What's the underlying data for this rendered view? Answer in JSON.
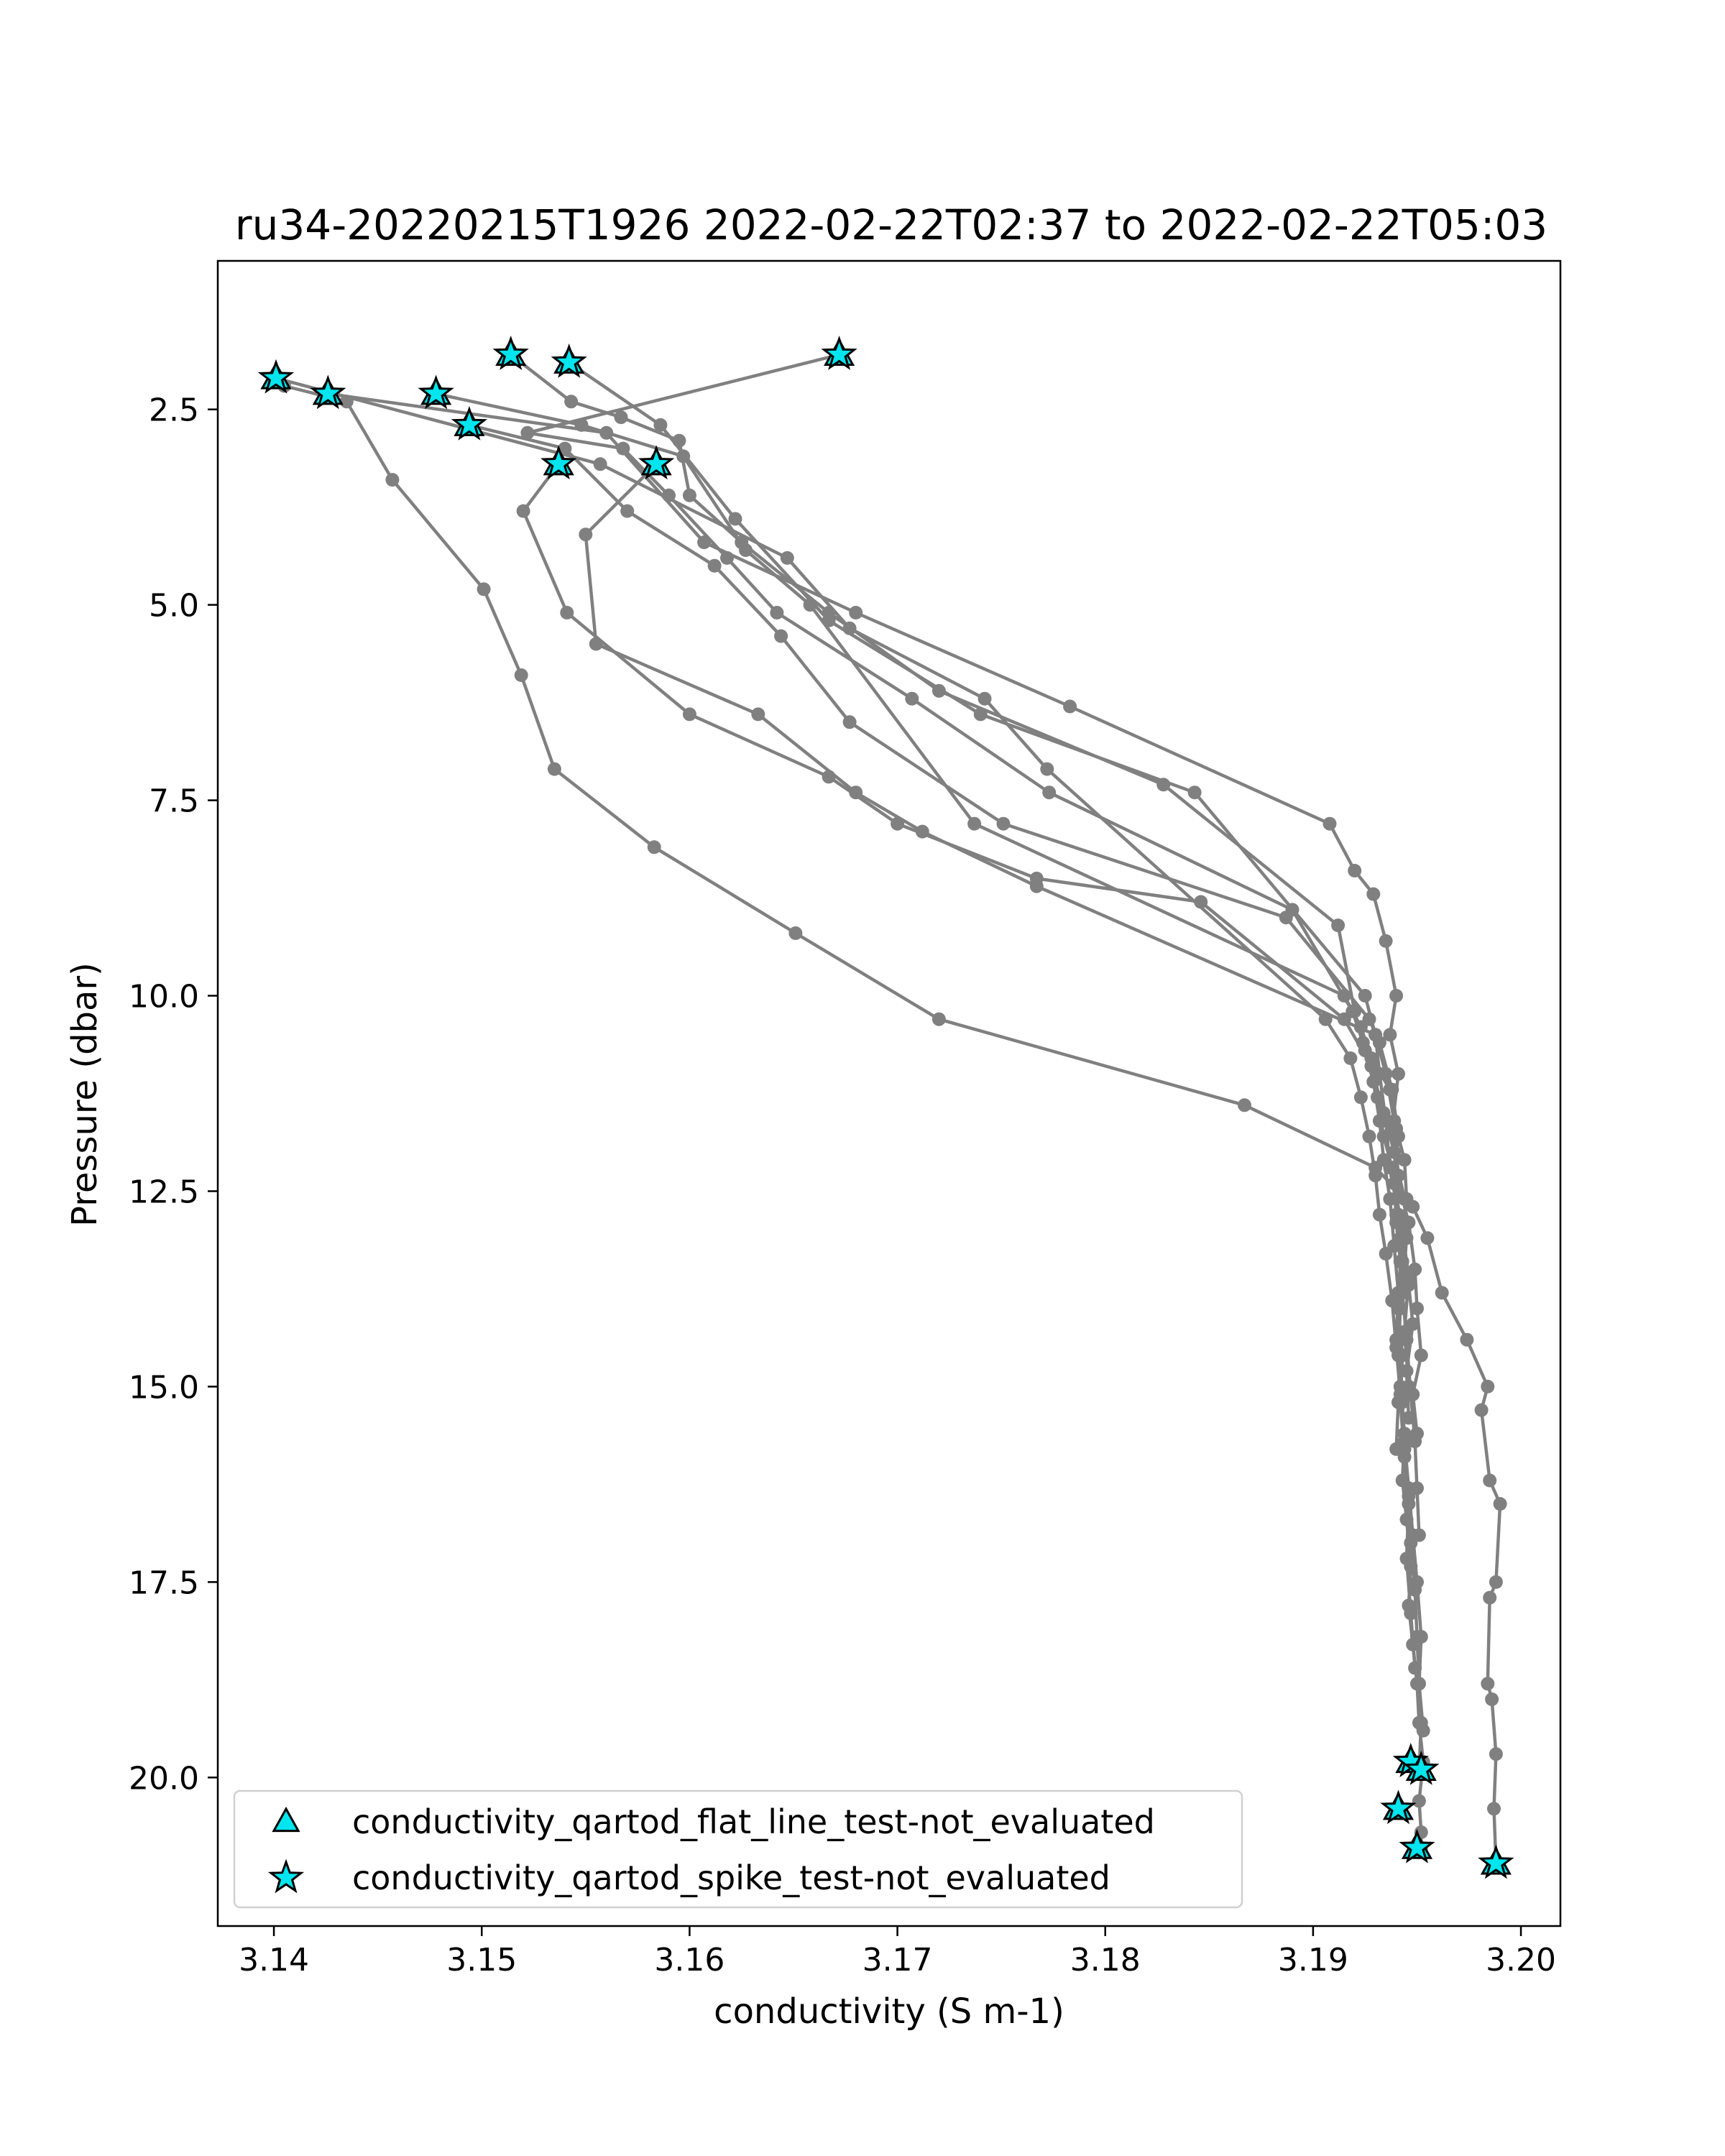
{
  "chart_data": {
    "type": "line",
    "title": "ru34-20220215T1926 2022-02-22T02:37 to 2022-02-22T05:03",
    "xlabel": "conductivity (S m-1)",
    "ylabel": "Pressure (dbar)",
    "xlim": [
      3.1373,
      3.2019
    ],
    "ylim": [
      21.9,
      0.6
    ],
    "y_inverted": true,
    "x_ticks": [
      3.14,
      3.15,
      3.16,
      3.17,
      3.18,
      3.19,
      3.2
    ],
    "x_tick_labels": [
      "3.14",
      "3.15",
      "3.16",
      "3.17",
      "3.18",
      "3.19",
      "3.20"
    ],
    "y_ticks": [
      2.5,
      5.0,
      7.5,
      10.0,
      12.5,
      15.0,
      17.5,
      20.0
    ],
    "y_tick_labels": [
      "2.5",
      "5.0",
      "7.5",
      "10.0",
      "12.5",
      "15.0",
      "17.5",
      "20.0"
    ],
    "grid": false,
    "legend_position": "lower-left",
    "colors": {
      "profile_line": "#808080",
      "marker_fill": "#00e5ee",
      "marker_edge": "#000000"
    },
    "series": [
      {
        "color": "#808080",
        "x": [
          3.1405,
          3.1435,
          3.1457,
          3.1501,
          3.1519,
          3.1535,
          3.1583,
          3.1651,
          3.172,
          3.1867,
          3.193,
          3.1948,
          3.1955,
          3.1962,
          3.1974,
          3.1984,
          3.1981,
          3.1985,
          3.199,
          3.1988,
          3.1985,
          3.1984,
          3.1986,
          3.1988,
          3.1987,
          3.1988
        ],
        "y": [
          2.2,
          2.4,
          3.4,
          4.8,
          5.9,
          7.1,
          8.1,
          9.2,
          10.3,
          11.4,
          12.2,
          12.7,
          13.1,
          13.8,
          14.4,
          15.0,
          15.3,
          16.2,
          16.5,
          17.5,
          17.7,
          18.8,
          19.0,
          19.7,
          20.4,
          21.1
        ]
      },
      {
        "color": "#808080",
        "x": [
          3.1426,
          3.156,
          3.1607,
          3.168,
          3.1783,
          3.1908,
          3.192,
          3.1929,
          3.1935,
          3.194,
          3.1937,
          3.1941,
          3.1938,
          3.194,
          3.1946,
          3.1949,
          3.195,
          3.1952,
          3.1948,
          3.195
        ],
        "y": [
          2.3,
          2.8,
          4.2,
          5.1,
          6.3,
          7.8,
          8.4,
          8.7,
          9.3,
          10.0,
          10.5,
          11.0,
          11.7,
          12.3,
          12.9,
          13.5,
          14.0,
          14.6,
          15.1,
          15.6
        ]
      },
      {
        "color": "#808080",
        "x": [
          3.1478,
          3.1548,
          3.1597,
          3.1627,
          3.1658,
          3.1737,
          3.1915,
          3.1923,
          3.1928,
          3.1937,
          3.194,
          3.1944,
          3.1945,
          3.1942,
          3.1946,
          3.1948,
          3.1945,
          3.1946
        ],
        "y": [
          2.3,
          2.7,
          3.1,
          4.3,
          5.0,
          7.8,
          10.0,
          10.4,
          10.8,
          11.2,
          11.7,
          12.1,
          12.6,
          13.1,
          13.7,
          14.2,
          14.8,
          15.4
        ]
      },
      {
        "color": "#808080",
        "x": [
          3.1494,
          3.154,
          3.157,
          3.1612,
          3.1644,
          3.1677,
          3.1751,
          3.1887,
          3.1927,
          3.1932,
          3.1938,
          3.1941,
          3.1939,
          3.1943,
          3.1946,
          3.1944,
          3.1946
        ],
        "y": [
          2.7,
          3.0,
          3.8,
          4.5,
          5.4,
          6.5,
          7.8,
          9.0,
          10.3,
          10.6,
          11.2,
          11.8,
          12.4,
          13.0,
          13.6,
          14.3,
          15.0
        ]
      },
      {
        "color": "#808080",
        "x": [
          3.1514,
          3.1543,
          3.1567,
          3.1595,
          3.16,
          3.1625,
          3.1667,
          3.172,
          3.1828,
          3.1912,
          3.192,
          3.1925,
          3.1931,
          3.1934,
          3.1938,
          3.194,
          3.1942,
          3.1941,
          3.1942,
          3.1941,
          3.194
        ],
        "y": [
          1.8,
          2.4,
          2.6,
          2.9,
          3.6,
          4.2,
          5.1,
          6.1,
          7.3,
          9.1,
          10.2,
          10.7,
          11.3,
          11.8,
          12.2,
          12.8,
          13.4,
          14.0,
          14.6,
          15.2,
          15.8
        ]
      },
      {
        "color": "#808080",
        "x": [
          3.1542,
          3.1586,
          3.1622,
          3.1667,
          3.174,
          3.1843,
          3.1925,
          3.193,
          3.1935,
          3.1939,
          3.1941,
          3.194,
          3.1942,
          3.1941,
          3.1943,
          3.1942,
          3.1944,
          3.1946,
          3.1945,
          3.1947,
          3.1949
        ],
        "y": [
          1.9,
          2.7,
          3.9,
          5.2,
          6.4,
          7.4,
          10.0,
          10.5,
          11.0,
          11.6,
          12.3,
          12.9,
          13.4,
          14.0,
          14.6,
          15.2,
          15.9,
          16.5,
          17.2,
          17.9,
          18.6
        ]
      },
      {
        "color": "#808080",
        "x": [
          3.1537,
          3.152,
          3.1541,
          3.16,
          3.1667,
          3.17,
          3.1767,
          3.1846,
          3.1915,
          3.1928,
          3.1934,
          3.1939,
          3.1944,
          3.1945,
          3.1943,
          3.1945,
          3.1947,
          3.1949,
          3.195,
          3.1951
        ],
        "y": [
          3.2,
          3.8,
          5.1,
          6.4,
          7.2,
          7.8,
          8.5,
          8.8,
          10.3,
          10.9,
          11.5,
          12.0,
          12.6,
          13.1,
          13.8,
          14.4,
          15.1,
          15.7,
          16.3,
          16.9
        ]
      },
      {
        "color": "#808080",
        "x": [
          3.1584,
          3.155,
          3.1555,
          3.1633,
          3.168,
          3.1712,
          3.1767,
          3.193,
          3.1932,
          3.1935,
          3.1937,
          3.1941,
          3.1943,
          3.1942,
          3.1941,
          3.1943,
          3.1944,
          3.1946,
          3.1947,
          3.1949,
          3.195,
          3.1951,
          3.1952,
          3.1951
        ],
        "y": [
          3.2,
          4.1,
          5.5,
          6.4,
          7.4,
          7.9,
          8.6,
          10.5,
          11.0,
          11.6,
          12.2,
          12.8,
          13.4,
          14.0,
          14.6,
          15.2,
          15.8,
          16.4,
          17.0,
          17.6,
          18.2,
          18.8,
          19.3,
          19.9
        ]
      },
      {
        "color": "#808080",
        "x": [
          3.1672,
          3.1522,
          3.1568,
          3.159,
          3.1618,
          3.1642,
          3.1707,
          3.1773,
          3.189,
          3.1919,
          3.1924,
          3.1929,
          3.1932,
          3.1934,
          3.1937,
          3.1939,
          3.1941,
          3.194,
          3.1942,
          3.1944,
          3.1943,
          3.1945,
          3.1947,
          3.1946,
          3.1948,
          3.195,
          3.1951,
          3.1953,
          3.1951,
          3.1952,
          3.1952
        ],
        "y": [
          1.8,
          2.8,
          3.0,
          3.6,
          4.4,
          5.1,
          6.2,
          7.4,
          8.9,
          10.2,
          10.6,
          11.1,
          11.6,
          12.1,
          12.6,
          13.2,
          13.8,
          14.4,
          15.0,
          15.6,
          16.2,
          16.7,
          17.3,
          17.8,
          18.3,
          18.8,
          19.3,
          19.8,
          20.3,
          20.7,
          20.9
        ]
      },
      {
        "color": "#808080",
        "x": [
          3.1401,
          3.1557,
          3.1647,
          3.1677,
          3.1742,
          3.1772,
          3.1906,
          3.1918,
          3.1923,
          3.1927,
          3.193,
          3.1932,
          3.1935,
          3.1938,
          3.194,
          3.1942,
          3.1944,
          3.1946,
          3.1948,
          3.195,
          3.1952,
          3.1951,
          3.1953
        ],
        "y": [
          2.1,
          3.2,
          4.4,
          5.3,
          6.2,
          7.1,
          10.3,
          10.8,
          11.3,
          11.8,
          12.3,
          12.8,
          13.3,
          13.9,
          14.5,
          15.1,
          15.7,
          16.3,
          16.9,
          17.5,
          18.2,
          18.8,
          19.4
        ]
      }
    ],
    "flag_markers": [
      {
        "marker": "star",
        "x": [
          3.1401,
          3.1426,
          3.1478,
          3.1494,
          3.1514,
          3.1537,
          3.1542,
          3.1584,
          3.1672,
          3.1941,
          3.1947,
          3.1952,
          3.195,
          3.1988
        ],
        "y": [
          2.1,
          2.3,
          2.3,
          2.7,
          1.8,
          3.2,
          1.9,
          3.2,
          1.8,
          20.4,
          19.8,
          19.9,
          20.9,
          21.1
        ]
      }
    ],
    "legend": [
      {
        "marker": "triangle",
        "label": "conductivity_qartod_flat_line_test-not_evaluated"
      },
      {
        "marker": "star",
        "label": "conductivity_qartod_spike_test-not_evaluated"
      }
    ]
  }
}
